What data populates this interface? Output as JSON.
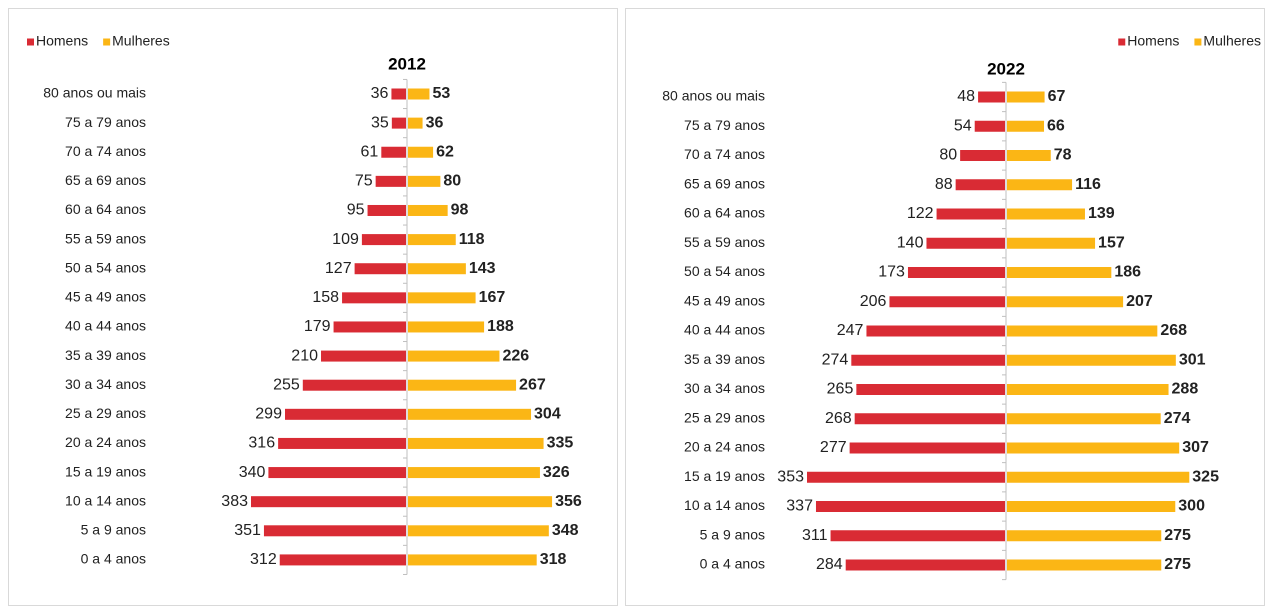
{
  "chart_data": [
    {
      "type": "pyramid",
      "title": "2012",
      "legend": "top-left",
      "categories": [
        "80 anos ou mais",
        "75 a 79 anos",
        "70 a 74 anos",
        "65 a 69 anos",
        "60 a 64 anos",
        "55 a 59 anos",
        "50 a 54 anos",
        "45 a 49 anos",
        "40 a 44 anos",
        "35 a 39 anos",
        "30 a 34 anos",
        "25 a 29 anos",
        "20 a 24 anos",
        "15 a 19 anos",
        "10 a 14 anos",
        "5 a 9 anos",
        "0 a 4 anos"
      ],
      "series": [
        {
          "name": "Homens",
          "color": "#d92b34",
          "values": [
            36,
            35,
            61,
            75,
            95,
            109,
            127,
            158,
            179,
            210,
            255,
            299,
            316,
            340,
            383,
            351,
            312
          ]
        },
        {
          "name": "Mulheres",
          "color": "#fbb615",
          "values": [
            53,
            36,
            62,
            80,
            98,
            118,
            143,
            167,
            188,
            226,
            267,
            304,
            335,
            326,
            356,
            348,
            318
          ]
        }
      ]
    },
    {
      "type": "pyramid",
      "title": "2022",
      "legend": "top-right",
      "categories": [
        "80 anos ou mais",
        "75 a 79 anos",
        "70 a 74 anos",
        "65 a 69 anos",
        "60 a 64 anos",
        "55 a 59 anos",
        "50 a 54 anos",
        "45 a 49 anos",
        "40 a 44 anos",
        "35 a 39 anos",
        "30 a 34 anos",
        "25 a 29 anos",
        "20 a 24 anos",
        "15 a 19 anos",
        "10 a 14 anos",
        "5 a 9 anos",
        "0 a 4 anos"
      ],
      "series": [
        {
          "name": "Homens",
          "color": "#d92b34",
          "values": [
            48,
            54,
            80,
            88,
            122,
            140,
            173,
            206,
            247,
            274,
            265,
            268,
            277,
            353,
            337,
            311,
            284
          ]
        },
        {
          "name": "Mulheres",
          "color": "#fbb615",
          "values": [
            67,
            66,
            78,
            116,
            139,
            157,
            186,
            207,
            268,
            301,
            288,
            274,
            307,
            325,
            300,
            275,
            275
          ]
        }
      ]
    }
  ]
}
